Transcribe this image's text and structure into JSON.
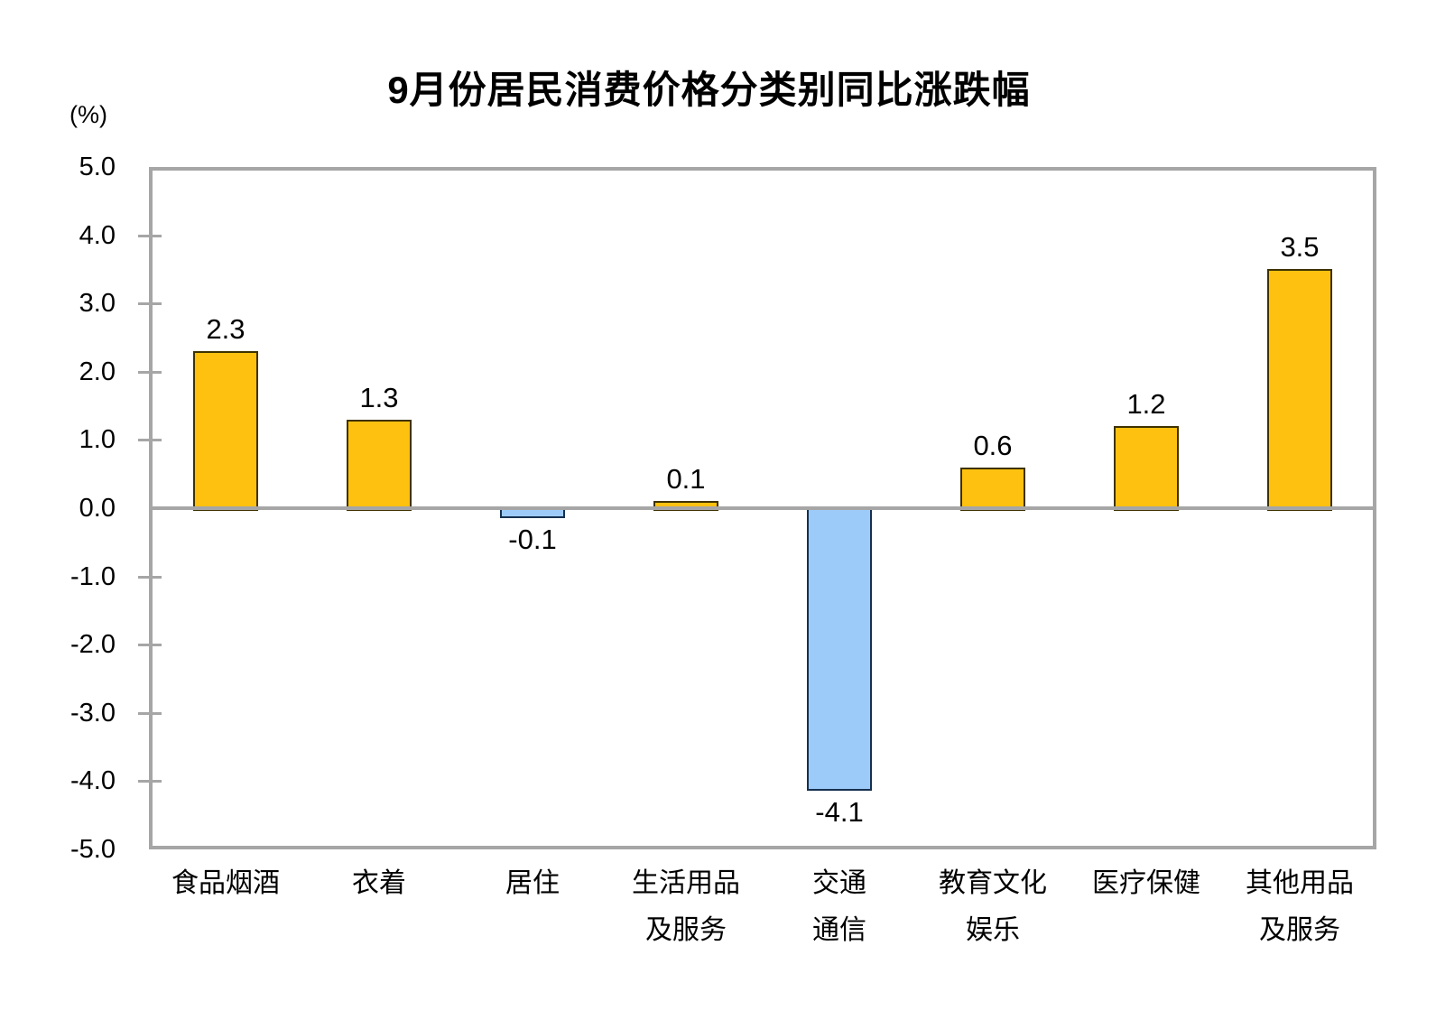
{
  "chart_data": {
    "type": "bar",
    "title": "9月份居民消费价格分类别同比涨跌幅",
    "unit": "(%)",
    "categories": [
      "食品烟酒",
      "衣着",
      "居住",
      "生活用品\n及服务",
      "交通\n通信",
      "教育文化\n娱乐",
      "医疗保健",
      "其他用品\n及服务"
    ],
    "values": [
      2.3,
      1.3,
      -0.1,
      0.1,
      -4.1,
      0.6,
      1.2,
      3.5
    ],
    "value_labels": [
      "2.3",
      "1.3",
      "-0.1",
      "0.1",
      "-4.1",
      "0.6",
      "1.2",
      "3.5"
    ],
    "ylim": [
      -5.0,
      5.0
    ],
    "ytick_step": 1.0,
    "ytick_labels": [
      "5.0",
      "4.0",
      "3.0",
      "2.0",
      "1.0",
      "0.0",
      "-1.0",
      "-2.0",
      "-3.0",
      "-4.0",
      "-5.0"
    ],
    "grid": false,
    "legend": "none",
    "xlabel": "",
    "ylabel": "(%)",
    "colors": {
      "positive_fill": "#FFC110",
      "positive_border": "#3E3200",
      "negative_fill": "#9DCBF9",
      "negative_border": "#16304F",
      "axis": "#A6A6A6",
      "text": "#000000"
    }
  }
}
